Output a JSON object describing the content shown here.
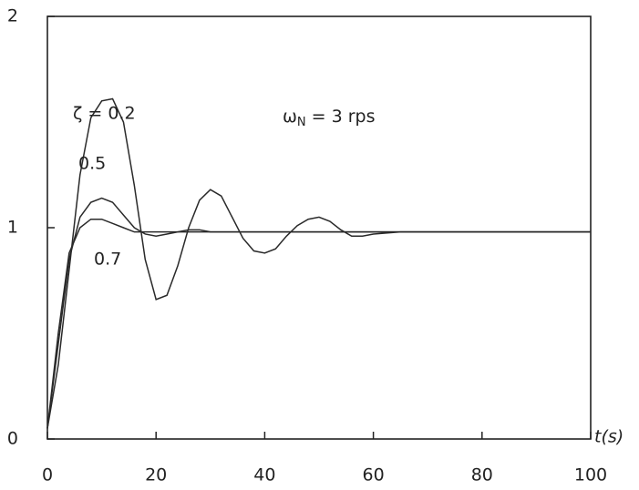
{
  "chart_data": {
    "type": "line",
    "annotation": {
      "symbol": "ω",
      "subscript": "N",
      "text": "= 3 rps"
    },
    "xlabel": "t(s)",
    "x": [
      0,
      2,
      4,
      6,
      8,
      10,
      12,
      14,
      16,
      18,
      20,
      22,
      24,
      26,
      28,
      30,
      32,
      34,
      36,
      38,
      40,
      42,
      44,
      46,
      48,
      50,
      52,
      54,
      56,
      58,
      60,
      65,
      70,
      80,
      90,
      100
    ],
    "series": [
      {
        "name": "ζ = 0.2",
        "color": "#2a2a2a",
        "values": [
          0.05,
          0.35,
          0.8,
          1.25,
          1.52,
          1.6,
          1.61,
          1.5,
          1.2,
          0.85,
          0.66,
          0.68,
          0.82,
          1.0,
          1.13,
          1.18,
          1.15,
          1.05,
          0.95,
          0.89,
          0.88,
          0.9,
          0.96,
          1.01,
          1.04,
          1.05,
          1.03,
          0.99,
          0.96,
          0.96,
          0.97,
          0.98,
          0.98,
          0.98,
          0.98,
          0.98
        ]
      },
      {
        "name": "0.5",
        "color": "#2a2a2a",
        "values": [
          0.05,
          0.45,
          0.85,
          1.05,
          1.12,
          1.14,
          1.12,
          1.06,
          1.0,
          0.97,
          0.96,
          0.97,
          0.98,
          0.99,
          0.99,
          0.98,
          0.98,
          0.98,
          0.98,
          0.98,
          0.98,
          0.98,
          0.98,
          0.98,
          0.98,
          0.98,
          0.98,
          0.98,
          0.98,
          0.98,
          0.98,
          0.98,
          0.98,
          0.98,
          0.98,
          0.98
        ]
      },
      {
        "name": "0.7",
        "color": "#2a2a2a",
        "values": [
          0.05,
          0.5,
          0.88,
          1.0,
          1.04,
          1.04,
          1.02,
          1.0,
          0.98,
          0.98,
          0.98,
          0.98,
          0.98,
          0.98,
          0.98,
          0.98,
          0.98,
          0.98,
          0.98,
          0.98,
          0.98,
          0.98,
          0.98,
          0.98,
          0.98,
          0.98,
          0.98,
          0.98,
          0.98,
          0.98,
          0.98,
          0.98,
          0.98,
          0.98,
          0.98,
          0.98
        ]
      }
    ],
    "xlim": [
      0,
      100
    ],
    "xticks": [
      0,
      20,
      40,
      60,
      80,
      100
    ],
    "ylim": [
      0,
      2
    ],
    "yticks": [
      0,
      1,
      2
    ]
  }
}
